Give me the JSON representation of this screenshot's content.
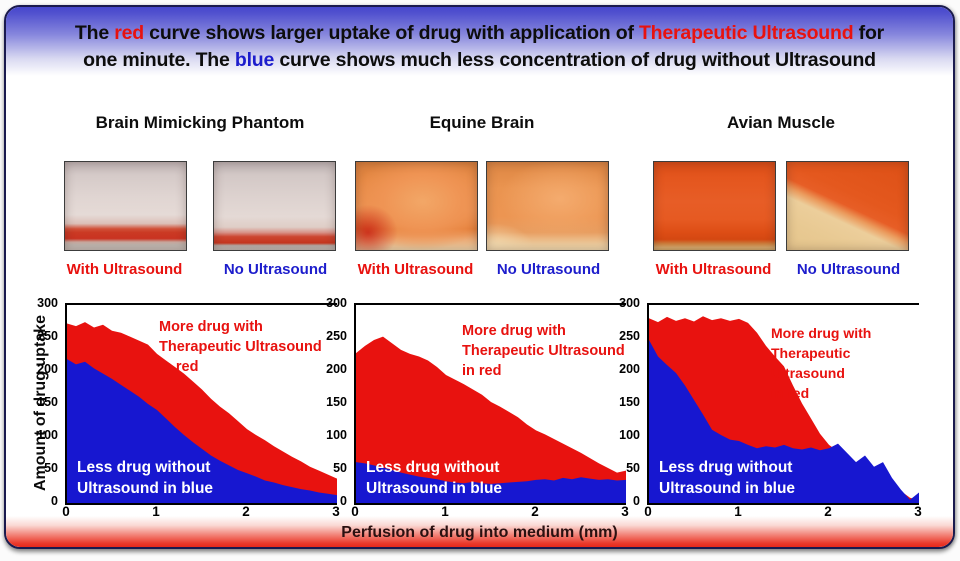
{
  "header": {
    "line1_segments": [
      {
        "text": "The ",
        "color": "#0d0d0d"
      },
      {
        "text": "red",
        "color": "#e8120f"
      },
      {
        "text": " curve shows larger uptake of drug with application of ",
        "color": "#0d0d0d"
      },
      {
        "text": "Therapeutic Ultrasound",
        "color": "#e8120f"
      },
      {
        "text": " for",
        "color": "#0d0d0d"
      }
    ],
    "line2_segments": [
      {
        "text": "one minute. The ",
        "color": "#0d0d0d"
      },
      {
        "text": "blue",
        "color": "#1d1dcc"
      },
      {
        "text": " curve shows much less concentration of drug without Ultrasound",
        "color": "#0d0d0d"
      }
    ]
  },
  "panels": [
    {
      "title": "Brain Mimicking Phantom",
      "with_label": "With Ultrasound",
      "without_label": "No Ultrasound"
    },
    {
      "title": "Equine Brain",
      "with_label": "With Ultrasound",
      "without_label": "No Ultrasound"
    },
    {
      "title": "Avian Muscle",
      "with_label": "With Ultrasound",
      "without_label": "No Ultrasound"
    }
  ],
  "colors": {
    "red": "#e8120f",
    "blue": "#1717d0",
    "label_blue": "#1d1dcc"
  },
  "footer": {
    "xlabel": "Perfusion of drug into medium (mm)"
  },
  "chart_data": [
    {
      "type": "area",
      "panel": "Brain Mimicking Phantom",
      "xlabel": "Perfusion of drug into medium (mm)",
      "ylabel": "Amount of drug uptake",
      "xlim": [
        0,
        3
      ],
      "ylim": [
        0,
        300
      ],
      "xticks": [
        0,
        1,
        2,
        3
      ],
      "yticks": [
        0,
        50,
        100,
        150,
        200,
        250,
        300
      ],
      "annotation_red": "More drug with\nTherapeutic Ultrasound\nin red",
      "annotation_blue": "Less drug without\nUltrasound in blue",
      "x": [
        0,
        0.1,
        0.2,
        0.3,
        0.4,
        0.5,
        0.6,
        0.7,
        0.8,
        0.9,
        1,
        1.1,
        1.2,
        1.3,
        1.4,
        1.5,
        1.6,
        1.7,
        1.8,
        1.9,
        2,
        2.1,
        2.2,
        2.3,
        2.4,
        2.5,
        2.6,
        2.7,
        2.8,
        2.9,
        3
      ],
      "series": [
        {
          "name": "With Therapeutic Ultrasound",
          "color": "#e8120f",
          "values": [
            272,
            268,
            274,
            266,
            270,
            261,
            258,
            252,
            246,
            240,
            226,
            216,
            206,
            196,
            184,
            172,
            158,
            146,
            136,
            124,
            112,
            103,
            95,
            86,
            78,
            70,
            63,
            55,
            49,
            43,
            37
          ]
        },
        {
          "name": "No Ultrasound",
          "color": "#1717d0",
          "values": [
            218,
            210,
            214,
            204,
            196,
            188,
            179,
            170,
            161,
            150,
            141,
            128,
            115,
            103,
            92,
            82,
            72,
            64,
            57,
            50,
            45,
            40,
            34,
            31,
            27,
            24,
            21,
            19,
            16,
            14,
            12
          ]
        }
      ]
    },
    {
      "type": "area",
      "panel": "Equine Brain",
      "xlabel": "Perfusion of drug into medium (mm)",
      "ylabel": "Amount of drug uptake",
      "xlim": [
        0,
        3
      ],
      "ylim": [
        0,
        300
      ],
      "xticks": [
        0,
        1,
        2,
        3
      ],
      "yticks": [
        0,
        50,
        100,
        150,
        200,
        250,
        300
      ],
      "annotation_red": "More drug with\nTherapeutic Ultrasound\nin red",
      "annotation_blue": "Less drug without\nUltrasound in blue",
      "x": [
        0,
        0.1,
        0.2,
        0.3,
        0.4,
        0.5,
        0.6,
        0.7,
        0.8,
        0.9,
        1,
        1.1,
        1.2,
        1.3,
        1.4,
        1.5,
        1.6,
        1.7,
        1.8,
        1.9,
        2,
        2.1,
        2.2,
        2.3,
        2.4,
        2.5,
        2.6,
        2.7,
        2.8,
        2.9,
        3
      ],
      "series": [
        {
          "name": "With Therapeutic Ultrasound",
          "color": "#e8120f",
          "values": [
            227,
            238,
            247,
            252,
            242,
            232,
            226,
            222,
            216,
            206,
            194,
            187,
            180,
            172,
            164,
            153,
            146,
            138,
            130,
            119,
            110,
            104,
            97,
            90,
            83,
            76,
            68,
            60,
            53,
            46,
            49
          ]
        },
        {
          "name": "No Ultrasound",
          "color": "#1717d0",
          "values": [
            62,
            60,
            57,
            54,
            50,
            46,
            43,
            40,
            38,
            36,
            33,
            31,
            30,
            32,
            30,
            29,
            30,
            31,
            32,
            33,
            35,
            36,
            34,
            38,
            36,
            39,
            37,
            35,
            36,
            34,
            35
          ]
        }
      ]
    },
    {
      "type": "area",
      "panel": "Avian Muscle",
      "xlabel": "Perfusion of drug into medium (mm)",
      "ylabel": "Amount of drug uptake",
      "xlim": [
        0,
        3
      ],
      "ylim": [
        0,
        300
      ],
      "xticks": [
        0,
        1,
        2,
        3
      ],
      "yticks": [
        0,
        50,
        100,
        150,
        200,
        250,
        300
      ],
      "annotation_red": "More drug with\nTherapeutic Ultrasound\nin red",
      "annotation_blue": "Less drug without\nUltrasound in blue",
      "x": [
        0,
        0.1,
        0.2,
        0.3,
        0.4,
        0.5,
        0.6,
        0.7,
        0.8,
        0.9,
        1,
        1.1,
        1.2,
        1.3,
        1.4,
        1.5,
        1.6,
        1.7,
        1.8,
        1.9,
        2,
        2.1,
        2.2,
        2.3,
        2.4,
        2.5,
        2.6,
        2.7,
        2.8,
        2.9,
        3
      ],
      "series": [
        {
          "name": "With Therapeutic Ultrasound",
          "color": "#e8120f",
          "values": [
            280,
            274,
            282,
            276,
            280,
            275,
            283,
            277,
            280,
            276,
            279,
            273,
            258,
            238,
            222,
            207,
            178,
            151,
            128,
            105,
            88,
            78,
            70,
            58,
            52,
            45,
            38,
            30,
            18,
            8,
            4
          ]
        },
        {
          "name": "No Ultrasound",
          "color": "#1717d0",
          "values": [
            247,
            222,
            209,
            197,
            178,
            156,
            134,
            111,
            103,
            96,
            94,
            88,
            83,
            86,
            84,
            88,
            83,
            81,
            84,
            80,
            83,
            90,
            76,
            62,
            72,
            55,
            62,
            38,
            20,
            5,
            16
          ]
        }
      ]
    }
  ]
}
